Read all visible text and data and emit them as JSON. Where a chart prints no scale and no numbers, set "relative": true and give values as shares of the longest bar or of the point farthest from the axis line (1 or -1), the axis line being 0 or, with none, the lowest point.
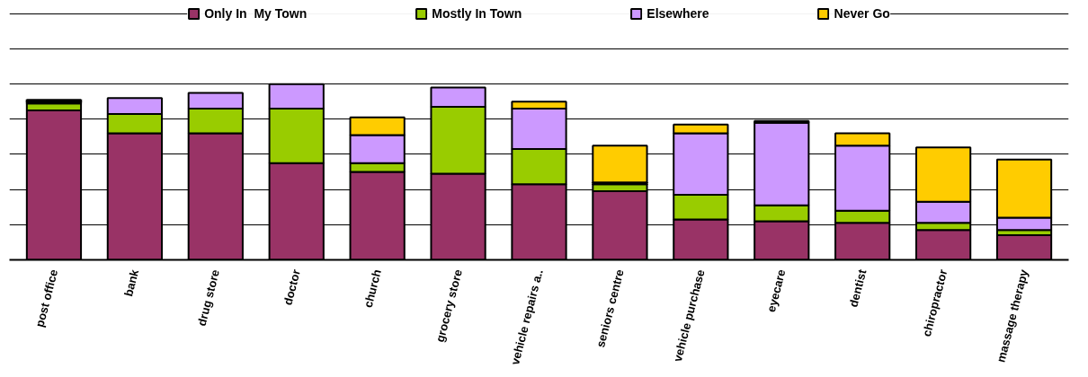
{
  "chart_data": {
    "type": "bar",
    "stacked": true,
    "relative": true,
    "grid": "y",
    "legend": "top",
    "categories": [
      "post office",
      "bank",
      "drug store",
      "doctor",
      "church",
      "grocery store",
      "vehicle repairs a..",
      "seniors centre",
      "vehicle purchase",
      "eyecare",
      "dentist",
      "chiropractor",
      "massage therapy"
    ],
    "series": [
      {
        "name": "Only In  My Town",
        "color": "#993366",
        "values": [
          0.85,
          0.72,
          0.72,
          0.55,
          0.5,
          0.49,
          0.43,
          0.39,
          0.23,
          0.22,
          0.21,
          0.17,
          0.14
        ]
      },
      {
        "name": "Mostly In Town",
        "color": "#99cc00",
        "values": [
          0.04,
          0.11,
          0.14,
          0.31,
          0.05,
          0.38,
          0.2,
          0.04,
          0.14,
          0.09,
          0.07,
          0.04,
          0.03
        ]
      },
      {
        "name": "Elsewhere",
        "color": "#cc99ff",
        "values": [
          0.01,
          0.09,
          0.09,
          0.14,
          0.16,
          0.11,
          0.23,
          0.01,
          0.35,
          0.47,
          0.37,
          0.12,
          0.07
        ]
      },
      {
        "name": "Never Go",
        "color": "#ffcc00",
        "values": [
          0.01,
          null,
          null,
          null,
          0.1,
          null,
          0.04,
          0.21,
          0.05,
          0.01,
          0.07,
          0.31,
          0.33
        ]
      }
    ]
  }
}
